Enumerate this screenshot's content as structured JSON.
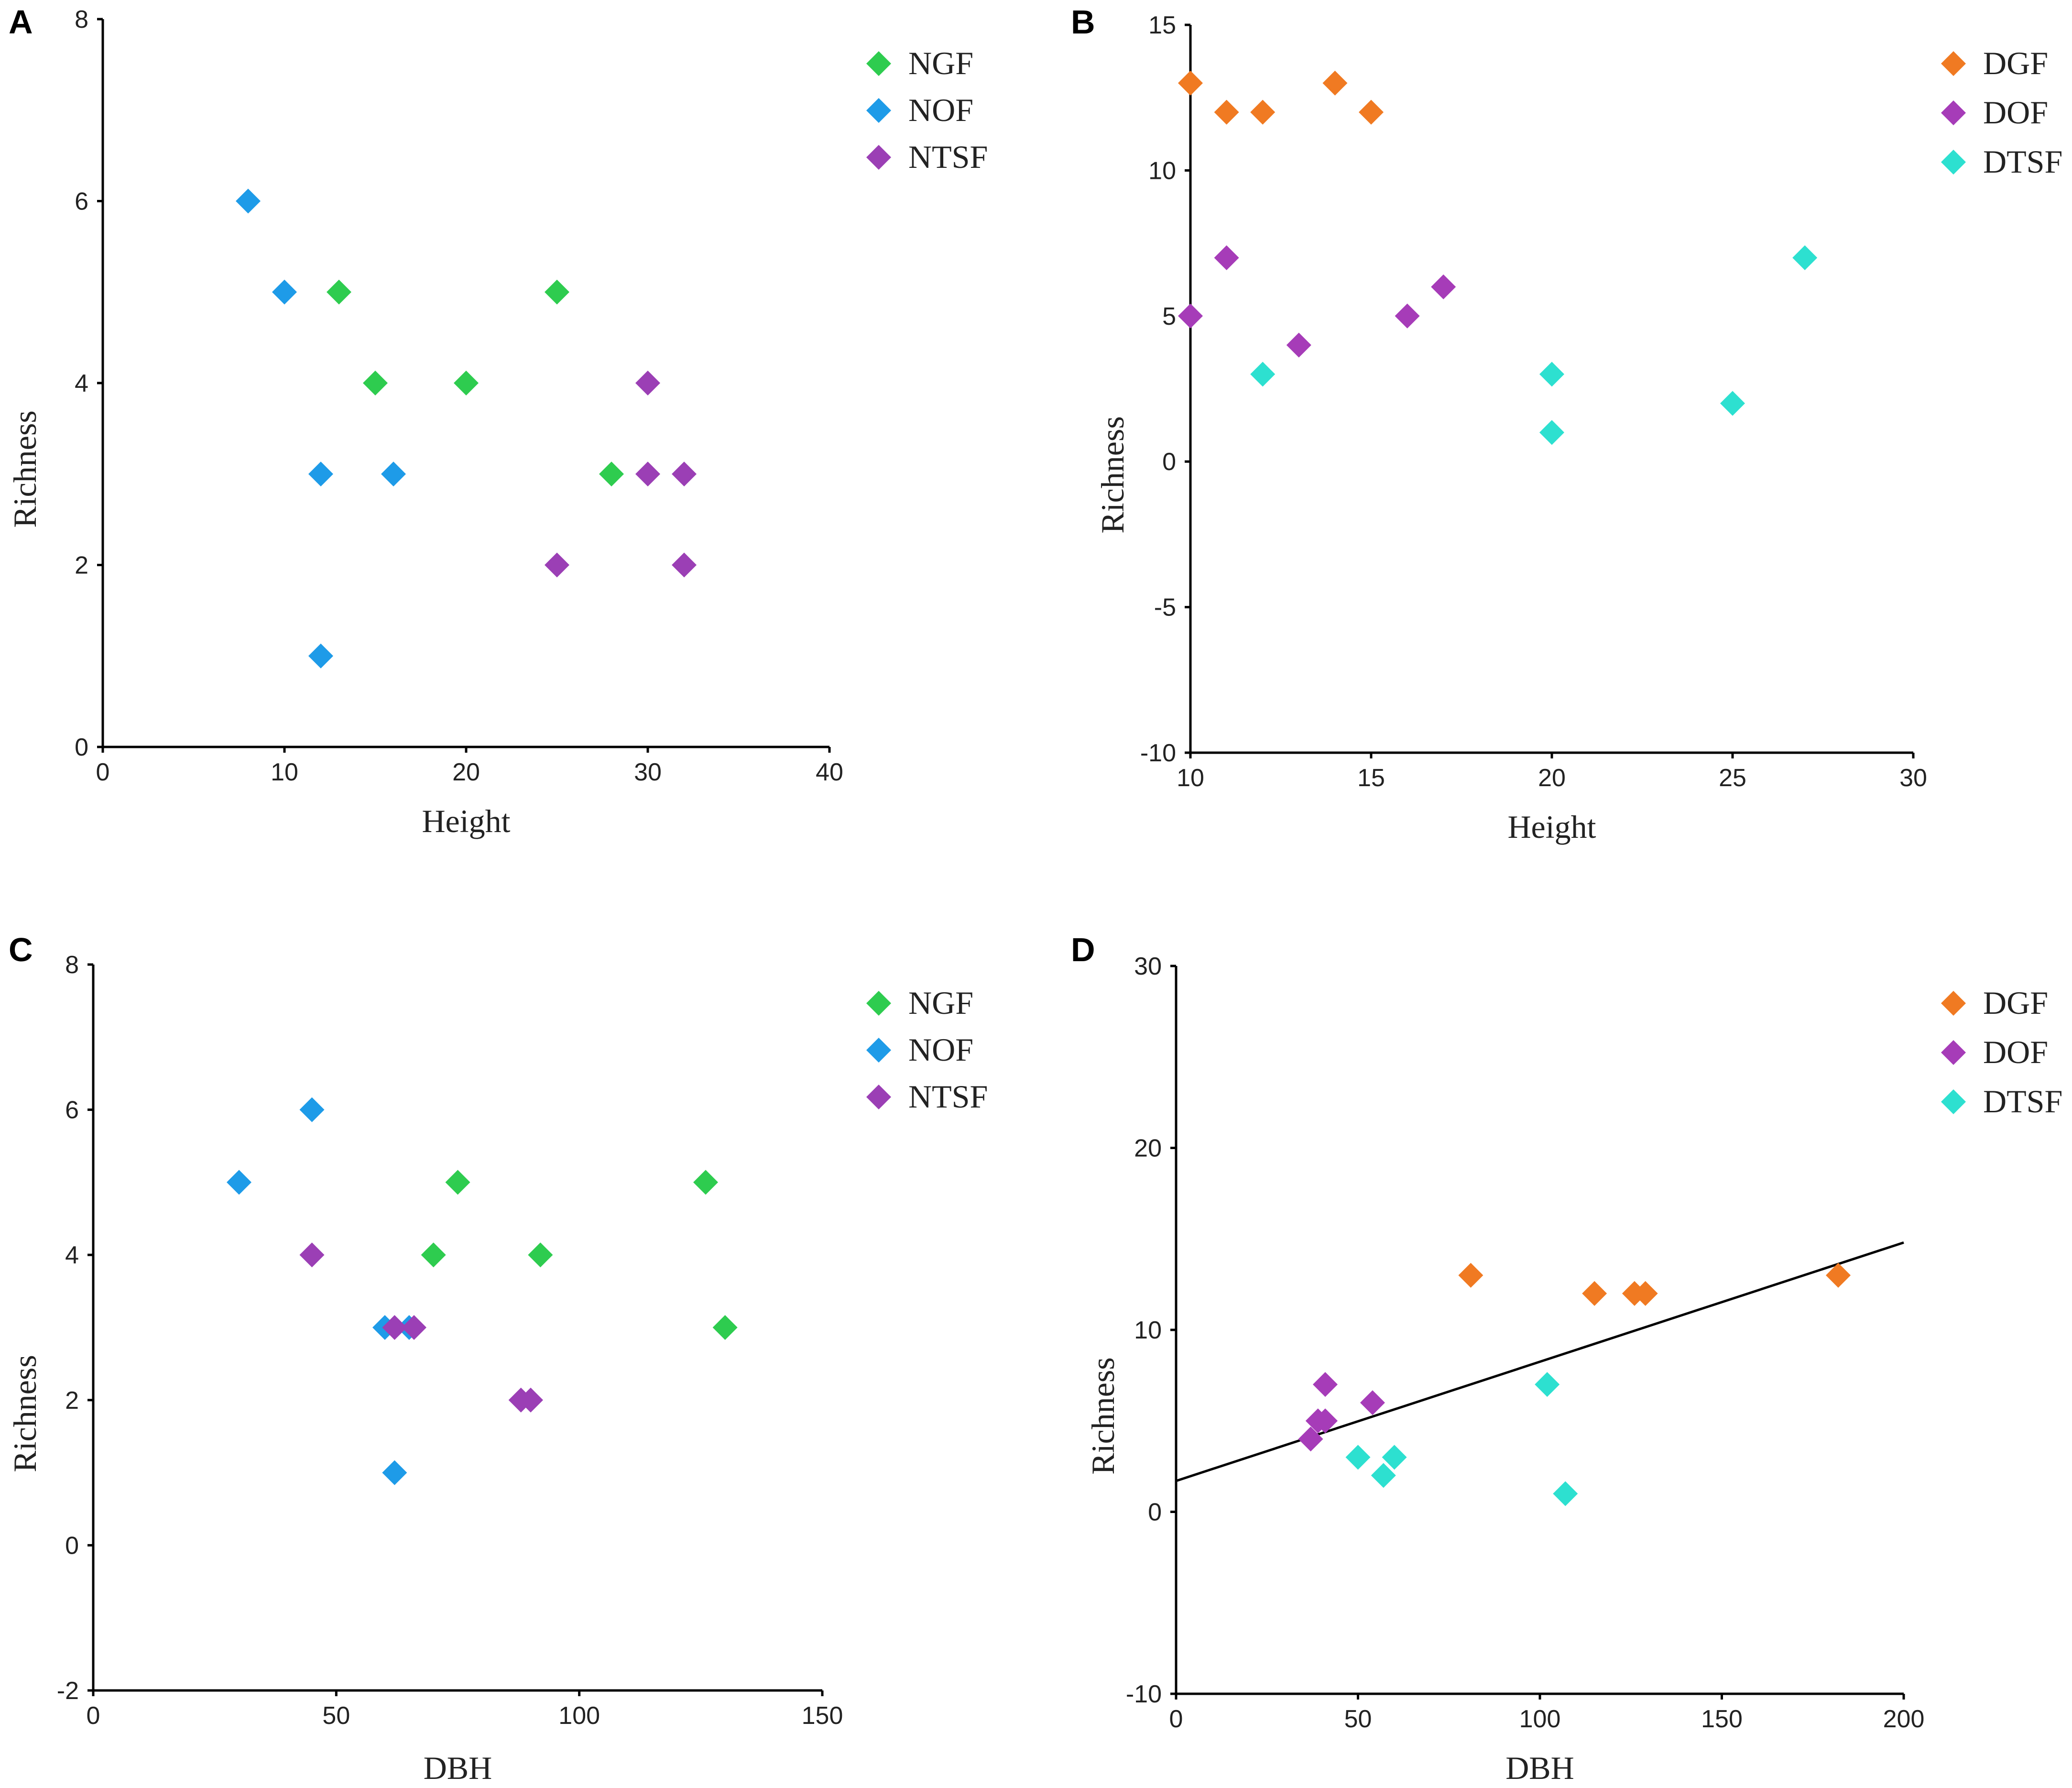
{
  "figure": {
    "colors": {
      "NGF": "#2ecc4f",
      "NOF": "#1e9be8",
      "NTSF": "#9b3fb5",
      "DGF": "#f07a22",
      "DOF": "#a63cb8",
      "DTSF": "#2de0d0"
    }
  },
  "chart_data": [
    {
      "id": "A",
      "panel_label": "A",
      "type": "scatter",
      "xlabel": "Height",
      "ylabel": "Richness",
      "xlim": [
        0,
        40
      ],
      "ylim": [
        0,
        8
      ],
      "xticks": [
        0,
        10,
        20,
        30,
        40
      ],
      "yticks": [
        0,
        2,
        4,
        6,
        8
      ],
      "legend_position": "top-right",
      "series": [
        {
          "name": "NGF",
          "color": "#2ecc4f",
          "x": [
            13,
            15,
            20,
            25,
            28
          ],
          "y": [
            5,
            4,
            4,
            5,
            3
          ]
        },
        {
          "name": "NOF",
          "color": "#1e9be8",
          "x": [
            8,
            10,
            12,
            16,
            12
          ],
          "y": [
            6,
            5,
            3,
            3,
            1
          ]
        },
        {
          "name": "NTSF",
          "color": "#9b3fb5",
          "x": [
            30,
            30,
            32,
            25,
            32
          ],
          "y": [
            4,
            3,
            3,
            2,
            2
          ]
        }
      ]
    },
    {
      "id": "B",
      "panel_label": "B",
      "type": "scatter",
      "xlabel": "Height",
      "ylabel": "Richness",
      "xlim": [
        10,
        30
      ],
      "ylim": [
        -10,
        15
      ],
      "xticks": [
        10,
        15,
        20,
        25,
        30
      ],
      "yticks": [
        -10,
        -5,
        0,
        5,
        10,
        15
      ],
      "legend_position": "top-right",
      "series": [
        {
          "name": "DGF",
          "color": "#f07a22",
          "x": [
            10,
            11,
            12,
            14,
            15
          ],
          "y": [
            13,
            12,
            12,
            13,
            12
          ]
        },
        {
          "name": "DOF",
          "color": "#a63cb8",
          "x": [
            10,
            11,
            13,
            16,
            17
          ],
          "y": [
            5,
            7,
            4,
            5,
            6
          ]
        },
        {
          "name": "DTSF",
          "color": "#2de0d0",
          "x": [
            12,
            20,
            20,
            25,
            27
          ],
          "y": [
            3,
            3,
            1,
            2,
            7
          ]
        }
      ]
    },
    {
      "id": "C",
      "panel_label": "C",
      "type": "scatter",
      "xlabel": "DBH",
      "ylabel": "Richness",
      "xlim": [
        0,
        150
      ],
      "ylim": [
        -2,
        8
      ],
      "xticks": [
        0,
        50,
        100,
        150
      ],
      "yticks": [
        -2,
        0,
        2,
        4,
        6,
        8
      ],
      "legend_position": "top-right",
      "series": [
        {
          "name": "NGF",
          "color": "#2ecc4f",
          "x": [
            75,
            70,
            92,
            126,
            130
          ],
          "y": [
            5,
            4,
            4,
            5,
            3
          ]
        },
        {
          "name": "NOF",
          "color": "#1e9be8",
          "x": [
            45,
            30,
            60,
            65,
            62
          ],
          "y": [
            6,
            5,
            3,
            3,
            1
          ]
        },
        {
          "name": "NTSF",
          "color": "#9b3fb5",
          "x": [
            45,
            62,
            66,
            88,
            90
          ],
          "y": [
            4,
            3,
            3,
            2,
            2
          ]
        }
      ]
    },
    {
      "id": "D",
      "panel_label": "D",
      "type": "scatter",
      "xlabel": "DBH",
      "ylabel": "Richness",
      "xlim": [
        0,
        200
      ],
      "ylim": [
        -10,
        30
      ],
      "xticks": [
        0,
        50,
        100,
        150,
        200
      ],
      "yticks": [
        -10,
        0,
        10,
        20,
        30
      ],
      "legend_position": "top-right",
      "fit_line": {
        "x": [
          0,
          200
        ],
        "y": [
          1.7,
          14.8
        ]
      },
      "series": [
        {
          "name": "DGF",
          "color": "#f07a22",
          "x": [
            81,
            115,
            126,
            129,
            182
          ],
          "y": [
            13,
            12,
            12,
            12,
            13
          ]
        },
        {
          "name": "DOF",
          "color": "#a63cb8",
          "x": [
            37,
            39,
            41,
            41,
            54
          ],
          "y": [
            4,
            5,
            5,
            7,
            6
          ]
        },
        {
          "name": "DTSF",
          "color": "#2de0d0",
          "x": [
            50,
            57,
            60,
            102,
            107
          ],
          "y": [
            3,
            2,
            3,
            7,
            1
          ]
        }
      ]
    }
  ]
}
